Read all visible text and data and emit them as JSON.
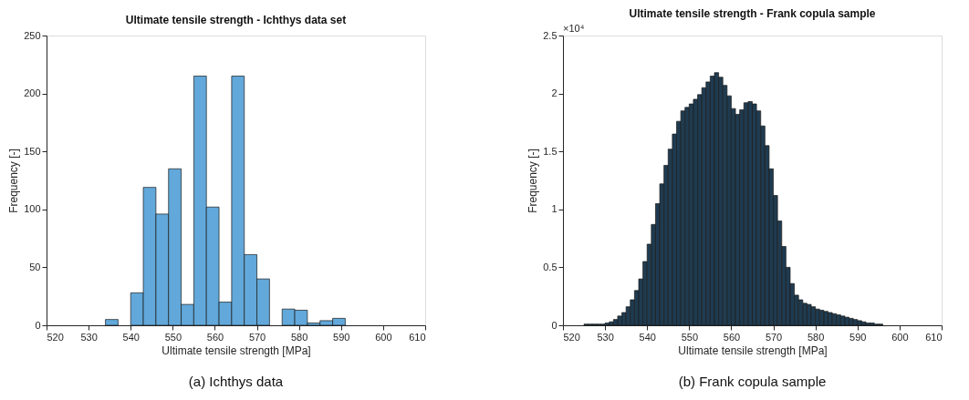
{
  "chart_data": [
    {
      "type": "histogram",
      "title": "Ultimate tensile strength - Ichthys data set",
      "xlabel": "Ultimate tensile strength [MPa]",
      "ylabel": "Frequency [-]",
      "color": "#62a8da",
      "bins": [
        534,
        537,
        540,
        543,
        546,
        549,
        552,
        555,
        558,
        561,
        564,
        567,
        570,
        573,
        576,
        579,
        582,
        585,
        588,
        591
      ],
      "values": [
        5,
        0,
        28,
        119,
        96,
        135,
        18,
        215,
        102,
        20,
        215,
        61,
        40,
        0,
        14,
        13,
        2,
        4,
        6
      ],
      "xlim": [
        520,
        610
      ],
      "xticks": [
        520,
        530,
        540,
        550,
        560,
        570,
        580,
        590,
        600,
        610
      ],
      "ylim": [
        0,
        250
      ],
      "yticks": [
        0,
        50,
        100,
        150,
        200,
        250
      ],
      "annotations": [
        "(a) Ichthys data"
      ]
    },
    {
      "type": "histogram",
      "title": "Ultimate tensile strength - Frank copula sample",
      "xlabel": "Ultimate tensile strength [MPa]",
      "ylabel": "Frequency [-]",
      "color": "#1f3b50",
      "bins": [
        522,
        523,
        524,
        525,
        526,
        527,
        528,
        529,
        530,
        531,
        532,
        533,
        534,
        535,
        536,
        537,
        538,
        539,
        540,
        541,
        542,
        543,
        544,
        545,
        546,
        547,
        548,
        549,
        550,
        551,
        552,
        553,
        554,
        555,
        556,
        557,
        558,
        559,
        560,
        561,
        562,
        563,
        564,
        565,
        566,
        567,
        568,
        569,
        570,
        571,
        572,
        573,
        574,
        575,
        576,
        577,
        578,
        579,
        580,
        581,
        582,
        583,
        584,
        585,
        586,
        587,
        588,
        589,
        590,
        591,
        592,
        593,
        594,
        595,
        596,
        597,
        598,
        599,
        600,
        601,
        602
      ],
      "values": [
        0,
        0,
        0,
        0.01,
        0.01,
        0.01,
        0.01,
        0.01,
        0.02,
        0.03,
        0.05,
        0.08,
        0.11,
        0.16,
        0.22,
        0.3,
        0.4,
        0.55,
        0.7,
        0.87,
        1.05,
        1.22,
        1.38,
        1.52,
        1.65,
        1.76,
        1.85,
        1.88,
        1.91,
        1.95,
        1.99,
        2.05,
        2.1,
        2.15,
        2.18,
        2.14,
        2.07,
        1.98,
        1.87,
        1.82,
        1.86,
        1.92,
        1.93,
        1.91,
        1.85,
        1.72,
        1.55,
        1.35,
        1.12,
        0.9,
        0.68,
        0.5,
        0.36,
        0.26,
        0.22,
        0.19,
        0.18,
        0.16,
        0.14,
        0.13,
        0.12,
        0.11,
        0.1,
        0.09,
        0.08,
        0.07,
        0.06,
        0.05,
        0.04,
        0.03,
        0.02,
        0.02,
        0.01,
        0.01,
        0,
        0,
        0,
        0,
        0,
        0
      ],
      "xlim": [
        520,
        610
      ],
      "xticks": [
        520,
        530,
        540,
        550,
        560,
        570,
        580,
        590,
        600,
        610
      ],
      "ylim": [
        0,
        2.5
      ],
      "yticks": [
        0,
        0.5,
        1,
        1.5,
        2,
        2.5
      ],
      "annotations": [
        "×10⁴",
        "(b) Frank copula sample"
      ]
    }
  ]
}
